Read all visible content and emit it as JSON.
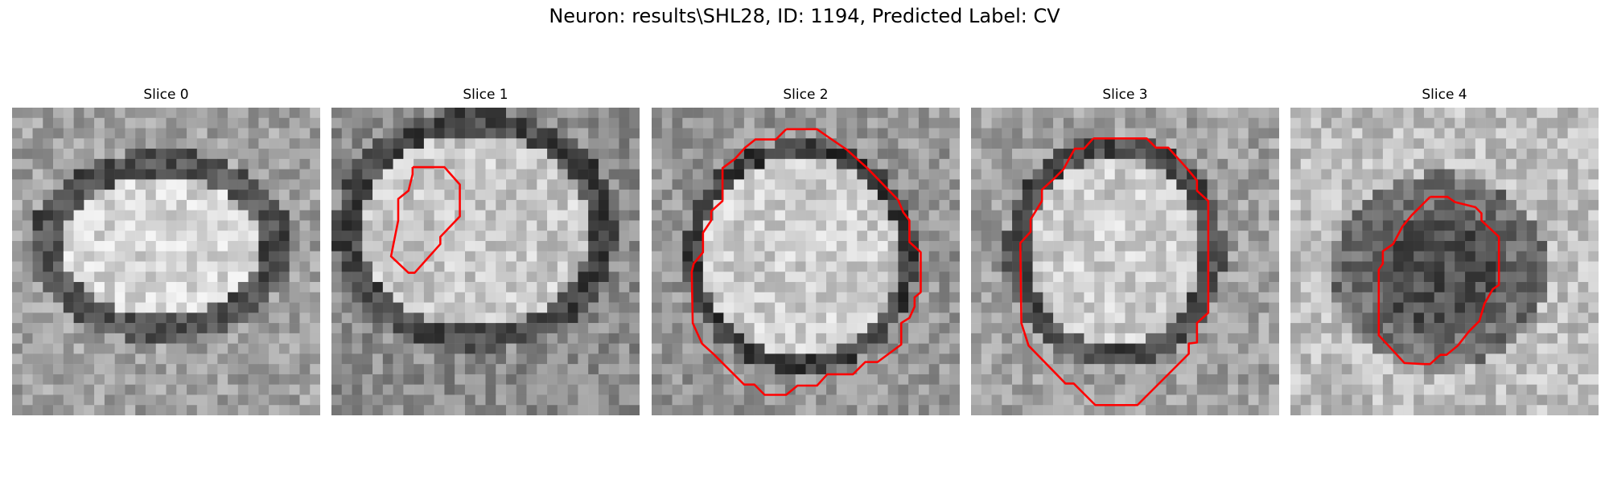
{
  "figure": {
    "title": "Neuron: results\\SHL28, ID: 1194, Predicted Label: CV"
  },
  "panels": [
    {
      "title": "Slice 0",
      "description": "grayscale EM patch with bright oval vesicle surrounded by dark ring",
      "has_contour": false,
      "contour_color": "#ff0000"
    },
    {
      "title": "Slice 1",
      "description": "grayscale EM patch with small red outline on upper-left region",
      "has_contour": true,
      "contour_color": "#ff0000"
    },
    {
      "title": "Slice 2",
      "description": "grayscale EM patch with large red outline around vesicle",
      "has_contour": true,
      "contour_color": "#ff0000"
    },
    {
      "title": "Slice 3",
      "description": "grayscale EM patch with large red outline around vesicle",
      "has_contour": true,
      "contour_color": "#ff0000"
    },
    {
      "title": "Slice 4",
      "description": "grayscale EM patch with red outline around dark central region",
      "has_contour": true,
      "contour_color": "#ff0000"
    }
  ]
}
